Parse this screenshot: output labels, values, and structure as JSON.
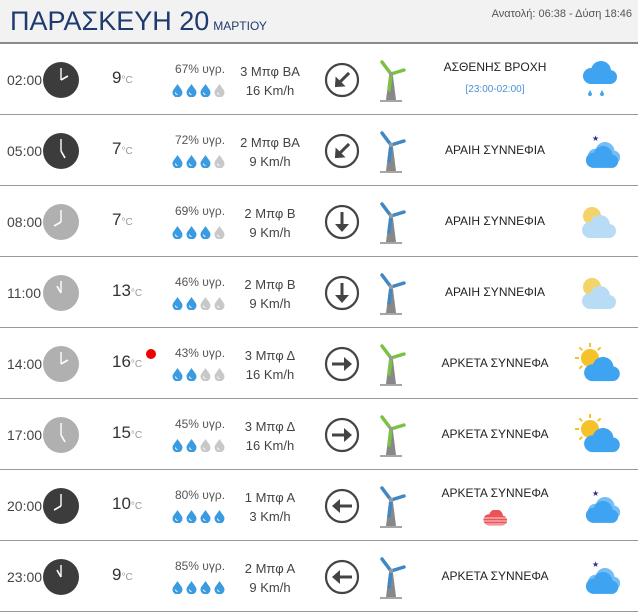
{
  "header": {
    "day": "ΠΑΡΑΣΚΕΥΗ 20",
    "month": "ΜΑΡΤΙΟΥ",
    "sunrise_sunset": "Ανατολή: 06:38  - Δύση 18:46"
  },
  "unit": "°C",
  "colors": {
    "title": "#1f3a6e",
    "drop": "#3a9be0",
    "drop_empty": "#c8c8c8",
    "turbine_green": "#7cc242",
    "turbine_blue": "#3f88c5",
    "cloud": "#3ea3f0",
    "moon": "#2a2f8f",
    "sun": "#f5c22b"
  },
  "rows": [
    {
      "time": "02:00",
      "clock": "dark",
      "temp": "9",
      "humidity": "67% υγρ.",
      "drops": 3,
      "beaufort": "3 Μπφ ΒΑ",
      "kmh": "16 Km/h",
      "arrow": "down-left",
      "turbine": "green",
      "desc": "ΑΣΘΕΝΗΣ ΒΡΟΧΗ",
      "sub": "[23:00-02:00]",
      "icon": "rain"
    },
    {
      "time": "05:00",
      "clock": "dark",
      "temp": "7",
      "humidity": "72% υγρ.",
      "drops": 3,
      "beaufort": "2 Μπφ ΒΑ",
      "kmh": "9 Km/h",
      "arrow": "down-left",
      "turbine": "blue",
      "desc": "ΑΡΑΙΗ ΣΥΝΝΕΦΙΑ",
      "icon": "night-cloud"
    },
    {
      "time": "08:00",
      "clock": "light",
      "temp": "7",
      "humidity": "69% υγρ.",
      "drops": 3,
      "beaufort": "2 Μπφ Β",
      "kmh": "9 Km/h",
      "arrow": "down",
      "turbine": "blue",
      "desc": "ΑΡΑΙΗ ΣΥΝΝΕΦΙΑ",
      "icon": "sun-cloud-pale"
    },
    {
      "time": "11:00",
      "clock": "light",
      "temp": "13",
      "humidity": "46% υγρ.",
      "drops": 2,
      "beaufort": "2 Μπφ Β",
      "kmh": "9 Km/h",
      "arrow": "down",
      "turbine": "blue",
      "desc": "ΑΡΑΙΗ ΣΥΝΝΕΦΙΑ",
      "icon": "sun-cloud-pale"
    },
    {
      "time": "14:00",
      "clock": "light",
      "temp": "16",
      "max": true,
      "humidity": "43% υγρ.",
      "drops": 2,
      "beaufort": "3 Μπφ Δ",
      "kmh": "16 Km/h",
      "arrow": "right",
      "turbine": "green",
      "desc": "ΑΡΚΕΤΑ ΣΥΝΝΕΦΑ",
      "icon": "sun-cloud"
    },
    {
      "time": "17:00",
      "clock": "light",
      "temp": "15",
      "humidity": "45% υγρ.",
      "drops": 2,
      "beaufort": "3 Μπφ Δ",
      "kmh": "16 Km/h",
      "arrow": "right",
      "turbine": "green",
      "desc": "ΑΡΚΕΤΑ ΣΥΝΝΕΦΑ",
      "icon": "sun-cloud"
    },
    {
      "time": "20:00",
      "clock": "dark",
      "temp": "10",
      "humidity": "80% υγρ.",
      "drops": 4,
      "beaufort": "1 Μπφ Α",
      "kmh": "3 Km/h",
      "arrow": "left",
      "turbine": "blue",
      "desc": "ΑΡΚΕΤΑ ΣΥΝΝΕΦΑ",
      "extra": "red-cloud",
      "icon": "night-cloud"
    },
    {
      "time": "23:00",
      "clock": "dark",
      "temp": "9",
      "humidity": "85% υγρ.",
      "drops": 4,
      "beaufort": "2 Μπφ Α",
      "kmh": "9 Km/h",
      "arrow": "left",
      "turbine": "blue",
      "desc": "ΑΡΚΕΤΑ ΣΥΝΝΕΦΑ",
      "icon": "night-cloud"
    }
  ]
}
